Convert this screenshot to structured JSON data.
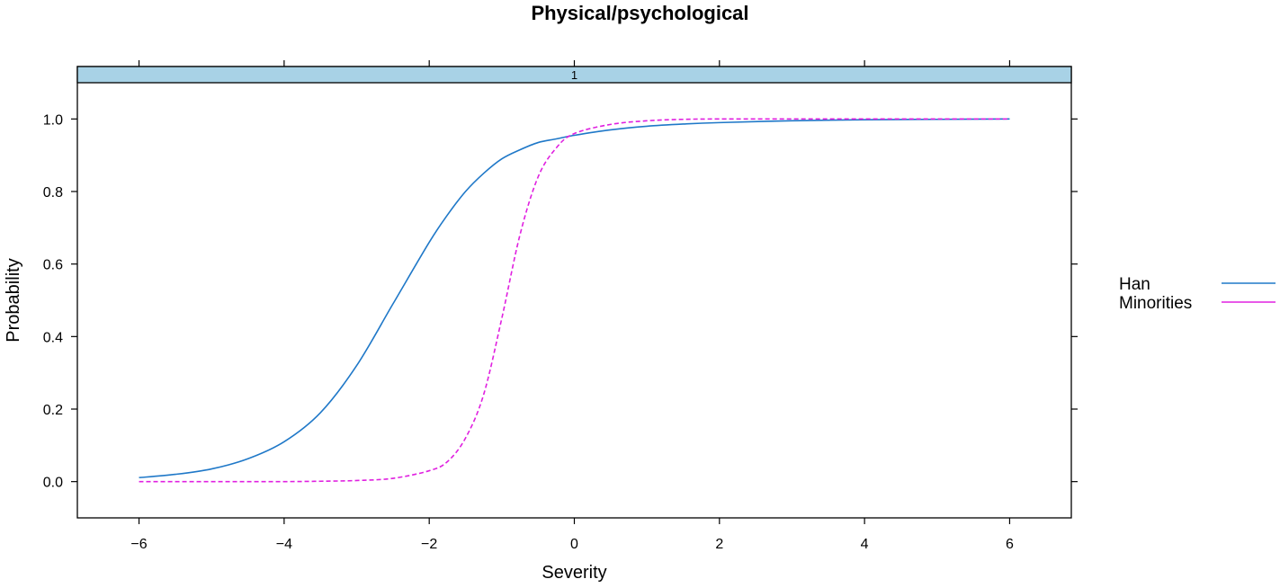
{
  "chart_data": {
    "type": "line",
    "title": "Physical/psychological",
    "panel_label": "1",
    "xlabel": "Severity",
    "ylabel": "Probability",
    "xlim": [
      -6.85,
      6.85
    ],
    "ylim": [
      -0.1,
      1.1
    ],
    "x_ticks": [
      -6,
      -4,
      -2,
      0,
      2,
      4,
      6
    ],
    "x_tick_labels": [
      "−6",
      "−4",
      "−2",
      "0",
      "2",
      "4",
      "6"
    ],
    "y_ticks": [
      0.0,
      0.2,
      0.4,
      0.6,
      0.8,
      1.0
    ],
    "y_tick_labels": [
      "0.0",
      "0.2",
      "0.4",
      "0.6",
      "0.8",
      "1.0"
    ],
    "grid": false,
    "legend_position": "right",
    "x": [
      -6,
      -5.5,
      -5,
      -4.5,
      -4,
      -3.5,
      -3,
      -2.5,
      -2,
      -1.75,
      -1.5,
      -1.25,
      -1,
      -0.75,
      -0.5,
      -0.25,
      0,
      0.5,
      1,
      1.5,
      2,
      3,
      4,
      5,
      6
    ],
    "series": [
      {
        "name": "Han",
        "color": "#1f78c8",
        "line_style": "solid",
        "values": [
          0.011,
          0.02,
          0.035,
          0.063,
          0.11,
          0.19,
          0.32,
          0.49,
          0.66,
          0.735,
          0.8,
          0.85,
          0.89,
          0.915,
          0.935,
          0.945,
          0.955,
          0.97,
          0.98,
          0.986,
          0.99,
          0.995,
          0.998,
          0.999,
          1.0
        ]
      },
      {
        "name": "Minorities",
        "color": "#e020e0",
        "line_style": "dashed",
        "values": [
          0.0,
          0.0,
          0.0,
          0.0,
          0.0,
          0.001,
          0.003,
          0.009,
          0.03,
          0.055,
          0.12,
          0.24,
          0.45,
          0.68,
          0.84,
          0.92,
          0.96,
          0.985,
          0.995,
          0.999,
          1.0,
          1.0,
          1.0,
          1.0,
          1.0
        ]
      }
    ]
  }
}
